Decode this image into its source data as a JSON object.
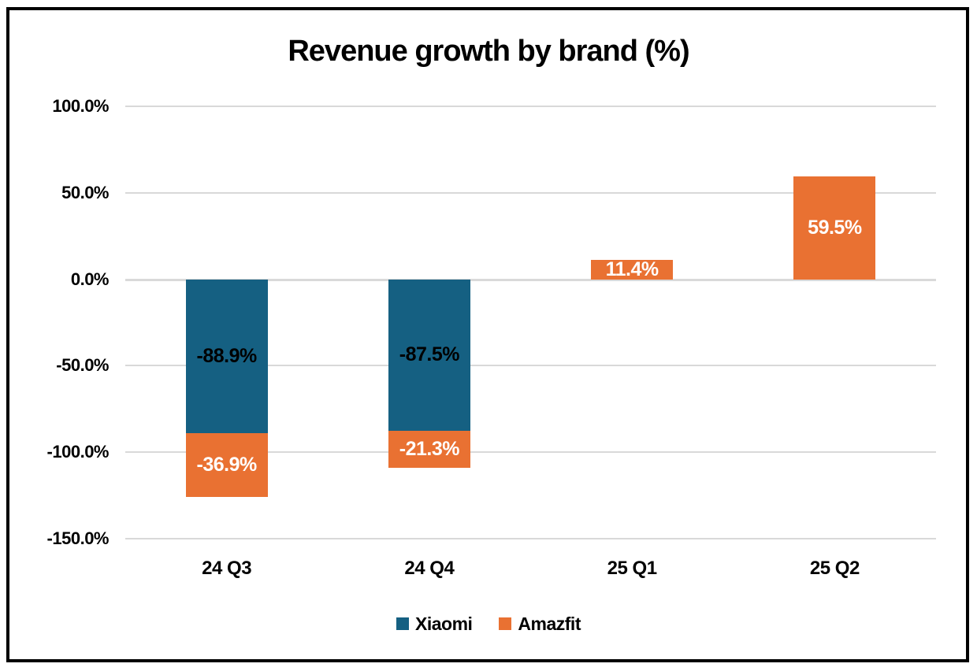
{
  "chart_data": {
    "type": "bar",
    "stacked": true,
    "title": "Revenue growth by brand (%)",
    "categories": [
      "24 Q3",
      "24 Q4",
      "25 Q1",
      "25 Q2"
    ],
    "series": [
      {
        "name": "Xiaomi",
        "color": "#156082",
        "label_color": "#000000",
        "values": [
          -88.9,
          -87.5,
          null,
          null
        ],
        "labels": [
          "-88.9%",
          "-87.5%",
          null,
          null
        ]
      },
      {
        "name": "Amazfit",
        "color": "#E97132",
        "label_color": "#FFFFFF",
        "values": [
          -36.9,
          -21.3,
          11.4,
          59.5
        ],
        "labels": [
          "-36.9%",
          "-21.3%",
          "11.4%",
          "59.5%"
        ]
      }
    ],
    "y_axis": {
      "min": -150,
      "max": 100,
      "tick_step": 50,
      "tick_labels": [
        "100.0%",
        "50.0%",
        "0.0%",
        "-50.0%",
        "-100.0%",
        "-150.0%"
      ]
    },
    "grid": true,
    "legend_position": "bottom",
    "style": {
      "background": "#FFFFFF",
      "frame_border": "#000000",
      "gridline": "#D9D9D9",
      "text": "#000000"
    }
  }
}
